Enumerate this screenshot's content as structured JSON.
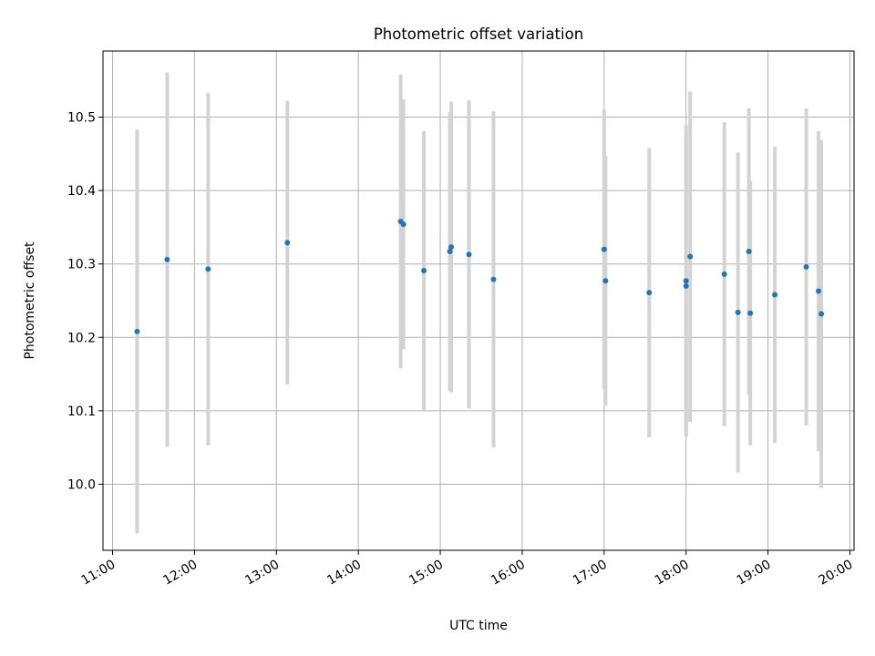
{
  "chart_data": {
    "type": "scatter",
    "title": "Photometric offset variation",
    "xlabel": "UTC time",
    "ylabel": "Photometric offset",
    "x_tick_labels": [
      "11:00",
      "12:00",
      "13:00",
      "14:00",
      "15:00",
      "16:00",
      "17:00",
      "18:00",
      "19:00",
      "20:00"
    ],
    "y_tick_labels": [
      "10.0",
      "10.1",
      "10.2",
      "10.3",
      "10.4",
      "10.5"
    ],
    "y_ticks": [
      10.0,
      10.1,
      10.2,
      10.3,
      10.4,
      10.5
    ],
    "xlim": [
      "10:53",
      "20:03"
    ],
    "ylim": [
      9.91,
      10.59
    ],
    "grid": true,
    "colors": {
      "point": "#1f77b4",
      "errorbar": "#d3d3d3",
      "grid": "#b0b0b0"
    },
    "series": [
      {
        "x": [
          "11:18",
          "11:40",
          "12:10",
          "13:08",
          "14:31",
          "14:33",
          "14:48",
          "15:07",
          "15:08",
          "15:21",
          "15:39",
          "17:00",
          "17:01",
          "17:33",
          "18:00",
          "18:00",
          "18:03",
          "18:28",
          "18:38",
          "18:46",
          "18:47",
          "19:05",
          "19:28",
          "19:37",
          "19:39"
        ],
        "y": [
          10.208,
          10.306,
          10.293,
          10.329,
          10.358,
          10.354,
          10.291,
          10.317,
          10.323,
          10.313,
          10.279,
          10.32,
          10.277,
          10.261,
          10.277,
          10.27,
          10.31,
          10.286,
          10.234,
          10.317,
          10.233,
          10.258,
          10.296,
          10.263,
          10.232
        ],
        "yerr": [
          0.275,
          0.255,
          0.24,
          0.193,
          0.2,
          0.17,
          0.19,
          0.19,
          0.198,
          0.21,
          0.229,
          0.19,
          0.17,
          0.197,
          0.212,
          0.205,
          0.225,
          0.207,
          0.218,
          0.195,
          0.18,
          0.202,
          0.216,
          0.218,
          0.237
        ]
      }
    ]
  }
}
